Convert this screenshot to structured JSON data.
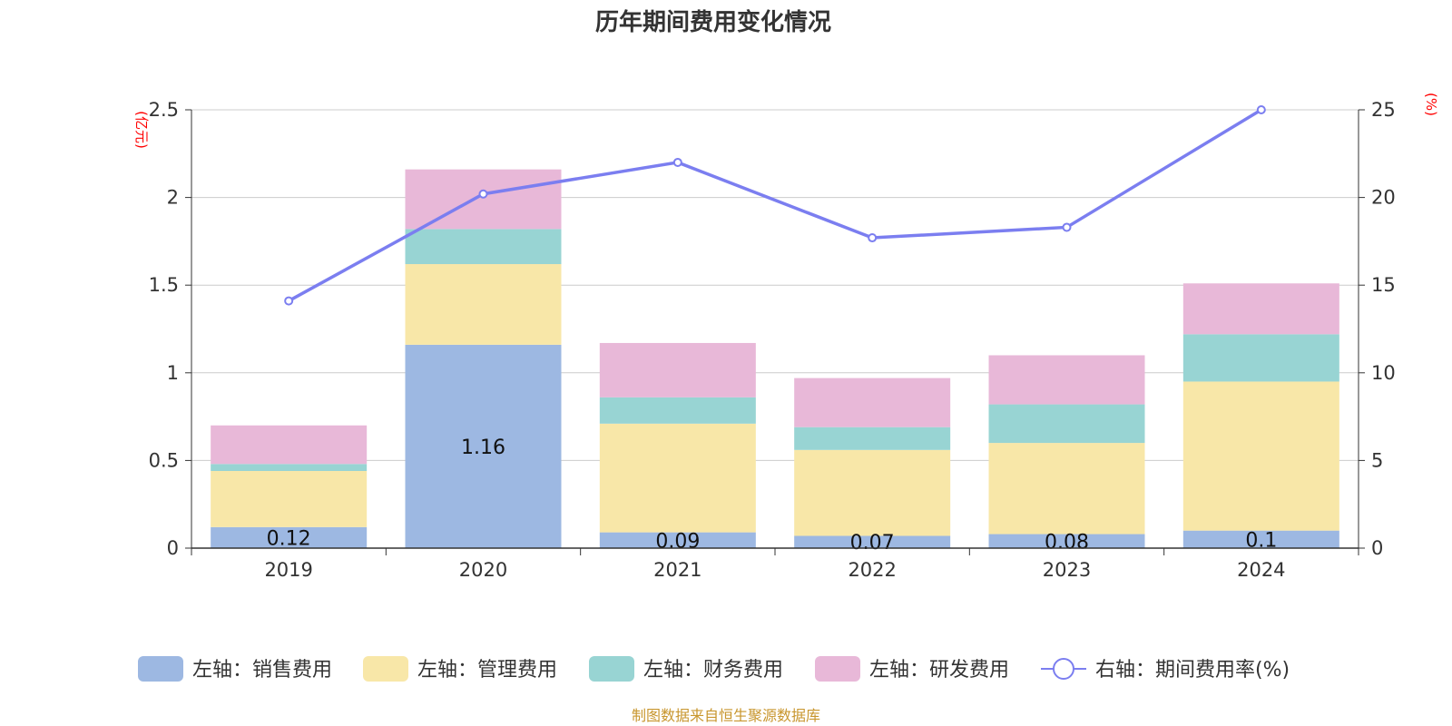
{
  "chart_data": {
    "type": "bar",
    "title": "历年期间费用变化情况",
    "categories": [
      "2019",
      "2020",
      "2021",
      "2022",
      "2023",
      "2024"
    ],
    "left_axis": {
      "unit": "(亿元)",
      "ylim": [
        0,
        2.5
      ],
      "ticks": [
        "0",
        "0.5",
        "1",
        "1.5",
        "2",
        "2.5"
      ],
      "tick_values": [
        0,
        0.5,
        1,
        1.5,
        2,
        2.5
      ]
    },
    "right_axis": {
      "unit": "(%)",
      "ylim": [
        0,
        25
      ],
      "ticks": [
        "0",
        "5",
        "10",
        "15",
        "20",
        "25"
      ],
      "tick_values": [
        0,
        5,
        10,
        15,
        20,
        25
      ]
    },
    "series": [
      {
        "name": "左轴：销售费用",
        "color": "#9db8e2",
        "values": [
          0.12,
          1.16,
          0.09,
          0.07,
          0.08,
          0.1
        ],
        "labels": [
          "0.12",
          "1.16",
          "0.09",
          "0.07",
          "0.08",
          "0.1"
        ]
      },
      {
        "name": "左轴：管理费用",
        "color": "#f8e7a8",
        "values": [
          0.32,
          0.46,
          0.62,
          0.49,
          0.52,
          0.85
        ]
      },
      {
        "name": "左轴：财务费用",
        "color": "#98d4d3",
        "values": [
          0.04,
          0.2,
          0.15,
          0.13,
          0.22,
          0.27
        ]
      },
      {
        "name": "左轴：研发费用",
        "color": "#e8b8d8",
        "values": [
          0.22,
          0.34,
          0.31,
          0.28,
          0.28,
          0.29
        ]
      }
    ],
    "line": {
      "name": "右轴：期间费用率(%)",
      "color": "#7b7ef0",
      "values": [
        14.1,
        20.2,
        22.0,
        17.7,
        18.3,
        25.0
      ]
    },
    "source": "制图数据来自恒生聚源数据库"
  }
}
